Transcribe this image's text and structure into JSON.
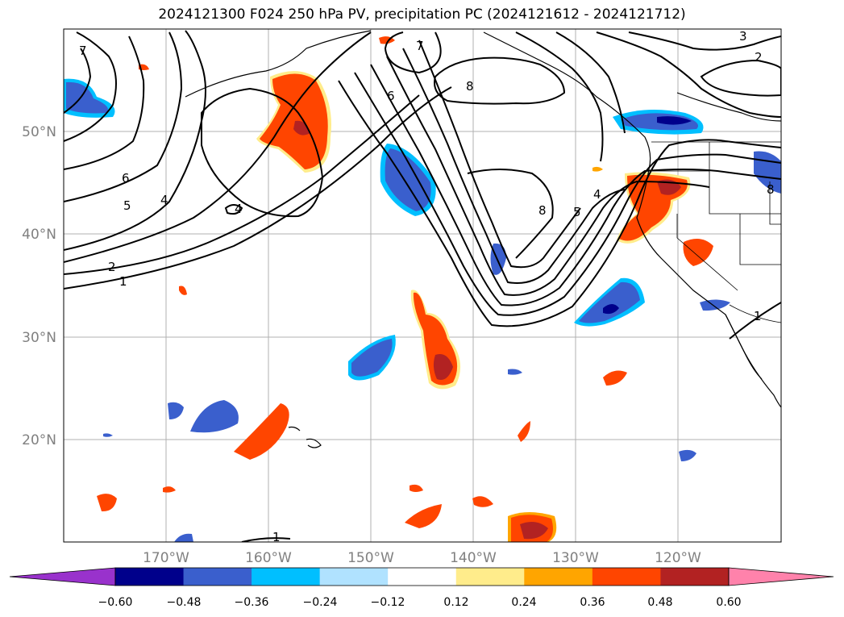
{
  "title": "2024121300 F024 250 hPa PV, precipitation PC (2024121612 - 2024121712)",
  "map": {
    "latitude_labels": [
      "50°N",
      "40°N",
      "30°N",
      "20°N"
    ],
    "longitude_labels": [
      "170°W",
      "160°W",
      "150°W",
      "140°W",
      "130°W",
      "120°W"
    ]
  },
  "pv_contour_labels": [
    "7",
    "6",
    "5",
    "4",
    "2",
    "1",
    "4",
    "6",
    "7",
    "8",
    "8",
    "5",
    "4",
    "3",
    "2",
    "1",
    "8",
    "1"
  ],
  "colorbar": {
    "ticks": [
      "−0.60",
      "−0.48",
      "−0.36",
      "−0.24",
      "−0.12",
      "0.12",
      "0.24",
      "0.36",
      "0.48",
      "0.60"
    ],
    "colors": [
      "#9932cc",
      "#00008b",
      "#3a5fcd",
      "#00bfff",
      "#b0e2ff",
      "#ffffff",
      "#ffec8b",
      "#ffa500",
      "#ff4500",
      "#b22222",
      "#ff82ab"
    ]
  }
}
